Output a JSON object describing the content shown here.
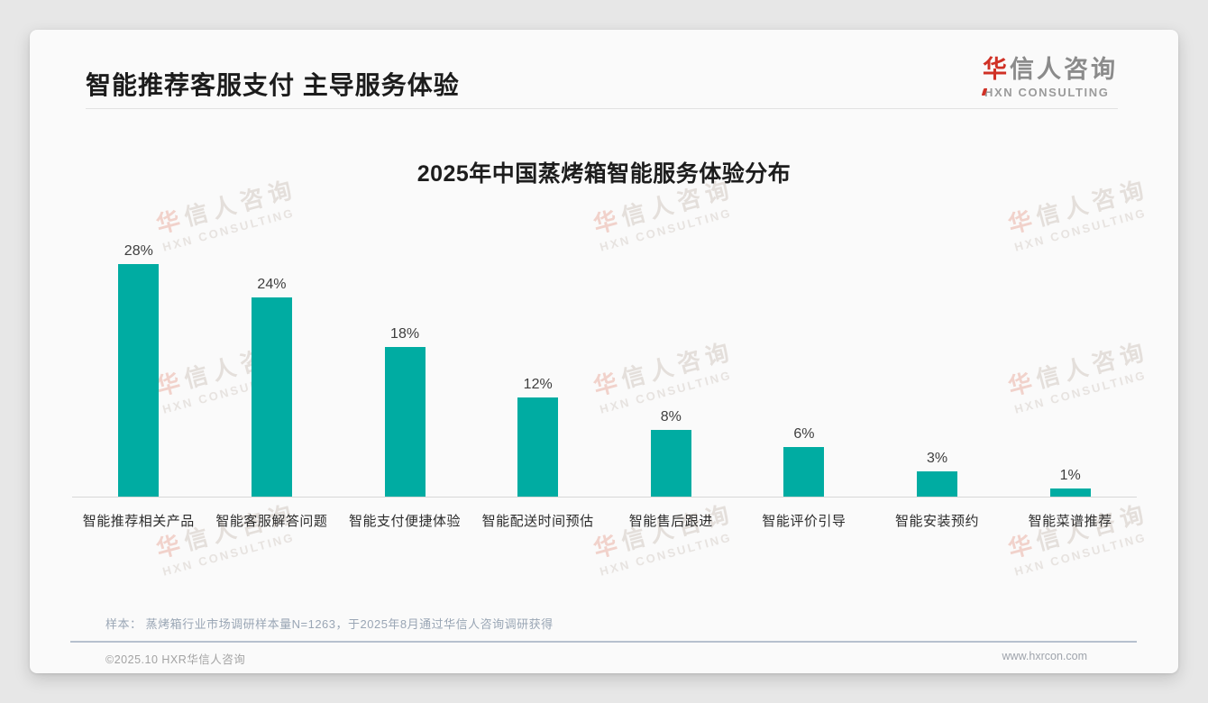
{
  "page": {
    "header": {
      "title": "智能推荐客服支付 主导服务体验",
      "logo": {
        "cn_first": "华",
        "cn_rest": "信人咨询",
        "en": "HXN CONSULTING"
      }
    },
    "watermark": {
      "cn_first": "华",
      "cn_rest": "信人咨询",
      "en": "HXN CONSULTING"
    },
    "footer": {
      "note": "样本： 蒸烤箱行业市场调研样本量N=1263，于2025年8月通过华信人咨询调研获得",
      "copyright": "©2025.10 HXR华信人咨询",
      "website": "www.hxrcon.com"
    }
  },
  "chart_data": {
    "type": "bar",
    "title": "2025年中国蒸烤箱智能服务体验分布",
    "categories": [
      "智能推荐相关产品",
      "智能客服解答问题",
      "智能支付便捷体验",
      "智能配送时间预估",
      "智能售后跟进",
      "智能评价引导",
      "智能安装预约",
      "智能菜谱推荐"
    ],
    "values": [
      28,
      24,
      18,
      12,
      8,
      6,
      3,
      1
    ],
    "value_labels": [
      "28%",
      "24%",
      "18%",
      "12%",
      "8%",
      "6%",
      "3%",
      "1%"
    ],
    "bar_color": "#00aca2",
    "xlabel": "",
    "ylabel": "",
    "ylim": [
      0,
      30
    ],
    "grid": false,
    "legend_position": "none"
  }
}
